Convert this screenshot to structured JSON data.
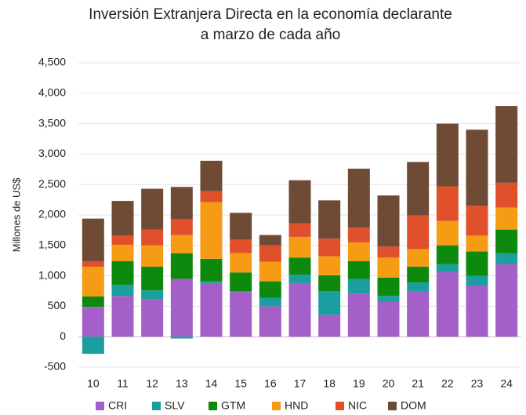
{
  "chart_data": {
    "type": "stacked_bar",
    "title": [
      "Inversión Extranjera Directa en la economía declarante",
      "a marzo de cada año"
    ],
    "y_label": "Millones de US$",
    "categories": [
      "10",
      "11",
      "12",
      "13",
      "14",
      "15",
      "16",
      "17",
      "18",
      "19",
      "20",
      "21",
      "22",
      "23",
      "24"
    ],
    "series": [
      {
        "name": "CRI",
        "color": "#a55fc9",
        "values": [
          490,
          670,
          620,
          950,
          880,
          735,
          500,
          880,
          360,
          710,
          570,
          750,
          1060,
          840,
          1190
        ]
      },
      {
        "name": "SLV",
        "color": "#1b9e9e",
        "values": [
          -280,
          180,
          140,
          -30,
          30,
          10,
          140,
          140,
          390,
          240,
          100,
          140,
          130,
          160,
          180
        ]
      },
      {
        "name": "GTM",
        "color": "#0d8a0d",
        "values": [
          170,
          390,
          390,
          420,
          370,
          310,
          270,
          280,
          260,
          290,
          300,
          260,
          310,
          400,
          390
        ]
      },
      {
        "name": "HND",
        "color": "#f59b14",
        "values": [
          490,
          270,
          350,
          300,
          930,
          320,
          320,
          340,
          310,
          310,
          330,
          290,
          400,
          260,
          360
        ]
      },
      {
        "name": "NIC",
        "color": "#e0512b",
        "values": [
          90,
          150,
          260,
          260,
          180,
          220,
          270,
          220,
          290,
          240,
          180,
          550,
          570,
          490,
          410
        ]
      },
      {
        "name": "DOM",
        "color": "#6f4b36",
        "values": [
          700,
          570,
          670,
          530,
          500,
          440,
          170,
          710,
          630,
          970,
          840,
          880,
          1030,
          1250,
          1260
        ]
      }
    ],
    "ylim": [
      -500,
      4500
    ],
    "yticks": [
      -500,
      0,
      500,
      {
        "value": 1000,
        "label": "1,000"
      },
      {
        "value": 1500,
        "label": "1,500"
      },
      {
        "value": 2000,
        "label": "2,000"
      },
      {
        "value": 2500,
        "label": "2,500"
      },
      {
        "value": 3000,
        "label": "3,000"
      },
      {
        "value": 3500,
        "label": "3,500"
      },
      {
        "value": 4000,
        "label": "4,000"
      },
      {
        "value": 4500,
        "label": "4,500"
      }
    ],
    "grid": true,
    "legend": "bottom"
  }
}
